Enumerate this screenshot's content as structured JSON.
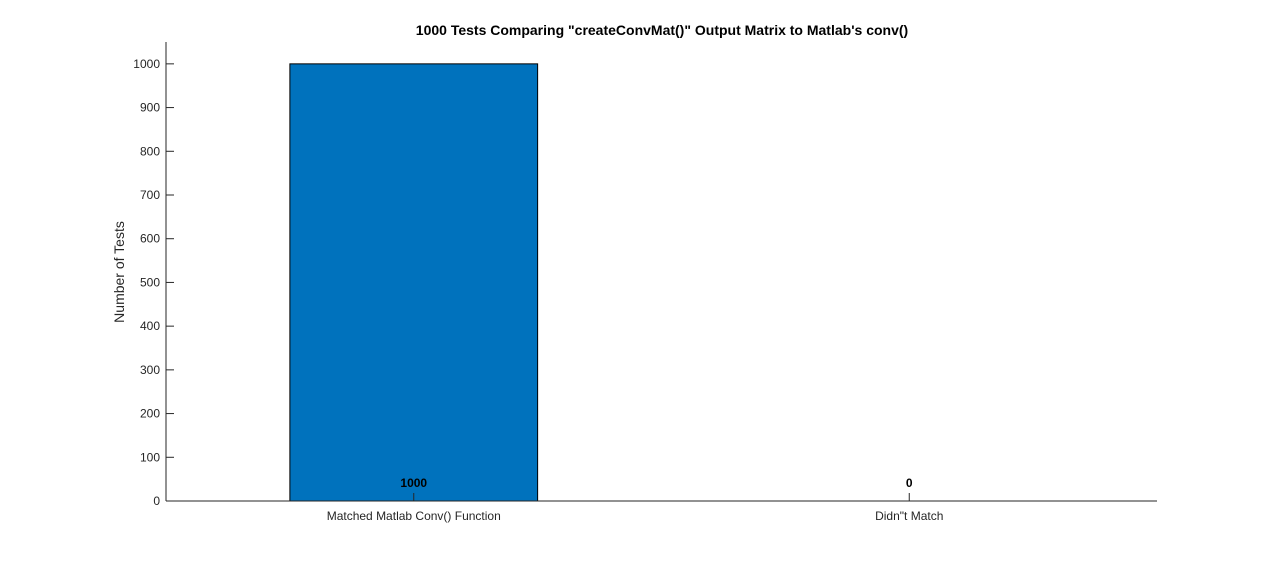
{
  "chart_data": {
    "type": "bar",
    "title": "1000 Tests Comparing \"createConvMat()\" Output Matrix to Matlab's conv()",
    "xlabel": "",
    "ylabel": "Number of Tests",
    "categories": [
      "Matched Matlab Conv() Function",
      "Didn\"t Match"
    ],
    "values": [
      1000,
      0
    ],
    "data_labels": [
      "1000",
      "0"
    ],
    "ylim": [
      0,
      1050
    ],
    "yticks": [
      0,
      100,
      200,
      300,
      400,
      500,
      600,
      700,
      800,
      900,
      1000
    ],
    "bar_color": "#0072BD",
    "grid": false,
    "legend": "none"
  }
}
